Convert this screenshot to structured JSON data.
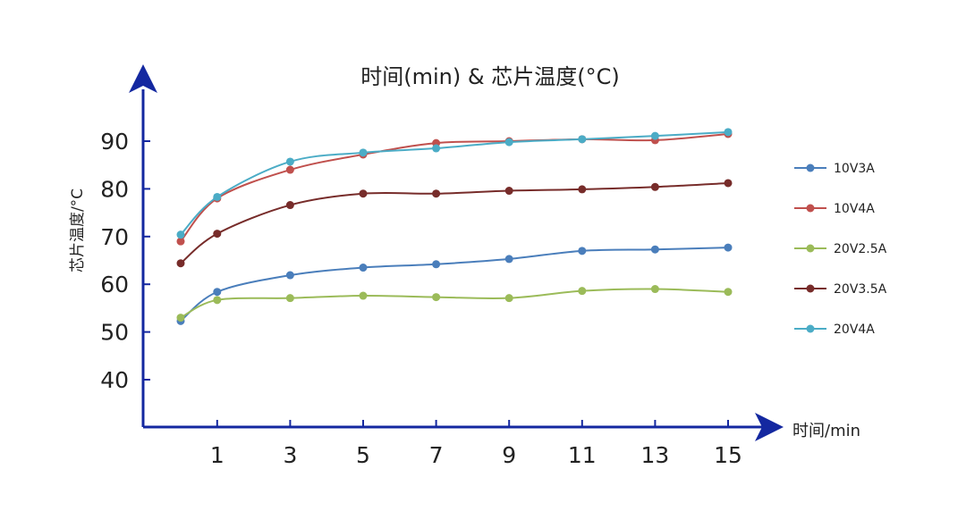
{
  "chart_data": {
    "type": "line",
    "title": "时间(min) & 芯片温度(°C)",
    "xlabel": "时间/min",
    "ylabel": "芯片温度/°C",
    "x": [
      0,
      1,
      3,
      5,
      7,
      9,
      11,
      13,
      15
    ],
    "xticks": [
      1,
      3,
      5,
      7,
      9,
      11,
      13,
      15
    ],
    "yticks": [
      40,
      50,
      60,
      70,
      80,
      90
    ],
    "ylim": [
      30,
      100
    ],
    "xlim": [
      -2,
      16
    ],
    "grid": false,
    "legend_position": "right",
    "smooth": true,
    "series": [
      {
        "name": "10V3A",
        "color": "#4a7ebb",
        "values": [
          52.3,
          58.4,
          61.9,
          63.5,
          64.2,
          65.3,
          67.0,
          67.3,
          67.7
        ]
      },
      {
        "name": "10V4A",
        "color": "#c0504d",
        "values": [
          69.0,
          78.0,
          84.0,
          87.2,
          89.6,
          90.0,
          90.4,
          90.2,
          91.5
        ]
      },
      {
        "name": "20V2.5A",
        "color": "#9bbb59",
        "values": [
          53.0,
          56.7,
          57.1,
          57.6,
          57.3,
          57.1,
          58.6,
          59.0,
          58.4
        ]
      },
      {
        "name": "20V3.5A",
        "color": "#772c2a",
        "values": [
          64.4,
          70.6,
          76.6,
          79.0,
          79.0,
          79.6,
          79.9,
          80.4,
          81.2
        ]
      },
      {
        "name": "20V4A",
        "color": "#4bacc6",
        "values": [
          70.4,
          78.3,
          85.7,
          87.6,
          88.5,
          89.8,
          90.4,
          91.1,
          91.9
        ]
      }
    ],
    "axis_color": "#1428a0"
  }
}
